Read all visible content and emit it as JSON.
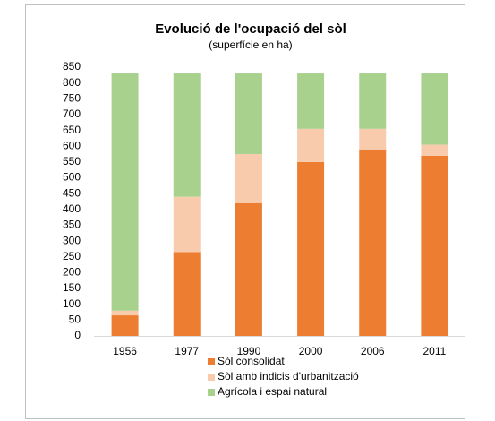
{
  "chart_data": {
    "type": "stacked_bar",
    "title": "Evolució de l'ocupació del sòl",
    "subtitle": "(superfície en ha)",
    "categories": [
      "1956",
      "1977",
      "1990",
      "2000",
      "2006",
      "2011"
    ],
    "series": [
      {
        "name": "Sòl consolidat",
        "color": "#ed7d31",
        "values": [
          65,
          265,
          420,
          550,
          590,
          570
        ]
      },
      {
        "name": "Sòl amb indicis d'urbanització",
        "color": "#f8cbad",
        "values": [
          15,
          175,
          155,
          105,
          65,
          35
        ]
      },
      {
        "name": "Agrícola i espai natural",
        "color": "#a9d18e",
        "values": [
          750,
          390,
          255,
          175,
          175,
          225
        ]
      }
    ],
    "ylim": [
      0,
      850
    ],
    "yticks": [
      0,
      50,
      100,
      150,
      200,
      250,
      300,
      350,
      400,
      450,
      500,
      550,
      600,
      650,
      700,
      750,
      800,
      850
    ],
    "legend": "bottom"
  }
}
